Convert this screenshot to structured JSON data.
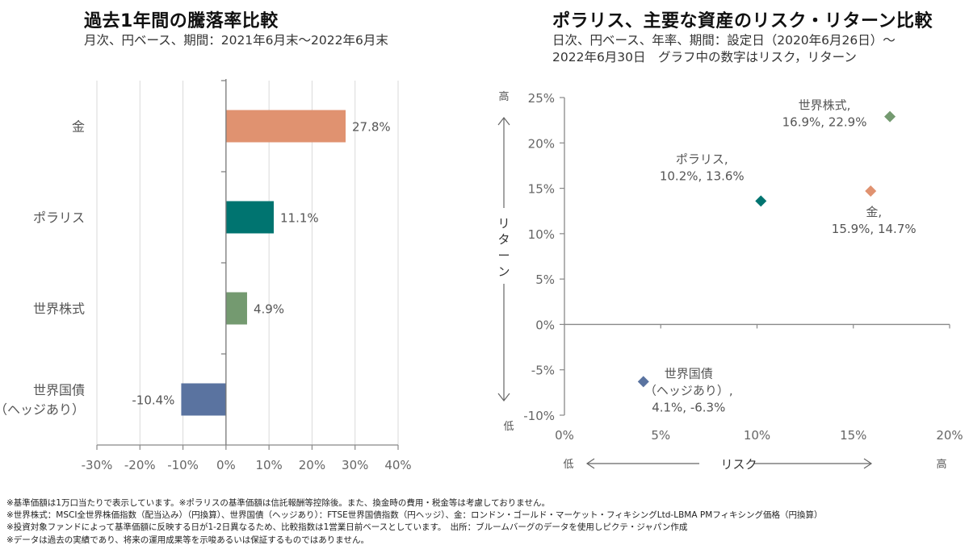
{
  "chart_data": [
    {
      "type": "bar",
      "orientation": "horizontal",
      "title": "過去1年間の騰落率比較",
      "subtitle": "月次、円ベース、期間：2021年6月末～2022年6月末",
      "categories": [
        "金",
        "ポラリス",
        "世界株式",
        "世界国債\n（ヘッジあり）"
      ],
      "category_lines": [
        [
          "金"
        ],
        [
          "ポラリス"
        ],
        [
          "世界株式"
        ],
        [
          "世界国債",
          "（ヘッジあり）"
        ]
      ],
      "values": [
        27.8,
        11.1,
        4.9,
        -10.4
      ],
      "data_labels": [
        "27.8%",
        "11.1%",
        "4.9%",
        "-10.4%"
      ],
      "colors": [
        "#e09270",
        "#007470",
        "#749a70",
        "#5a73a0"
      ],
      "xlim": [
        -30,
        40
      ],
      "xticks": [
        -30,
        -20,
        -10,
        0,
        10,
        20,
        30,
        40
      ],
      "xtick_labels": [
        "-30%",
        "-20%",
        "-10%",
        "0%",
        "10%",
        "20%",
        "30%",
        "40%"
      ],
      "grid": true,
      "xlabel": "",
      "ylabel": ""
    },
    {
      "type": "scatter",
      "title": "ポラリス、主要な資産のリスク・リターン比較",
      "subtitle_lines": [
        "日次、円ベース、年率、期間：設定日（2020年6月26日）～",
        "2022年6月30日　グラフ中の数字はリスク，リターン"
      ],
      "points": [
        {
          "name": "世界株式",
          "x": 16.9,
          "y": 22.9,
          "color": "#749a70",
          "label_lines": [
            "世界株式,",
            "16.9%, 22.9%"
          ]
        },
        {
          "name": "ポラリス",
          "x": 10.2,
          "y": 13.6,
          "color": "#007470",
          "label_lines": [
            "ポラリス,",
            "10.2%, 13.6%"
          ]
        },
        {
          "name": "金",
          "x": 15.9,
          "y": 14.7,
          "color": "#e09270",
          "label_lines": [
            "金,",
            "15.9%, 14.7%"
          ]
        },
        {
          "name": "世界国債（ヘッジあり）",
          "x": 4.1,
          "y": -6.3,
          "color": "#5a73a0",
          "label_lines": [
            "世界国債",
            "（ヘッジあり）,",
            "4.1%, -6.3%"
          ]
        }
      ],
      "xlim": [
        0,
        20
      ],
      "ylim": [
        -10,
        25
      ],
      "xticks": [
        0,
        5,
        10,
        15,
        20
      ],
      "xtick_labels": [
        "0%",
        "5%",
        "10%",
        "15%",
        "20%"
      ],
      "yticks": [
        25,
        20,
        15,
        10,
        5,
        0,
        -5,
        -10
      ],
      "ytick_labels": [
        "25%",
        "20%",
        "15%",
        "10%",
        "5%",
        "0%",
        "-5%",
        "-10%"
      ],
      "xlabel": "リスク",
      "ylabel": "リターン",
      "x_low": "低",
      "x_high": "高",
      "y_low": "低",
      "y_high": "高",
      "grid": false
    }
  ],
  "footnotes": [
    "※基準価額は1万口当たりで表示しています。※ポラリスの基準価額は信託報酬等控除後。また、換金時の費用・税金等は考慮しておりません。",
    "※世界株式：MSCI全世界株価指数（配当込み）（円換算）、世界国債（ヘッジあり）：FTSE世界国債指数（円ヘッジ）、金：ロンドン・ゴールド・マーケット・フィキシングLtd-LBMA PMフィキシング価格（円換算）",
    "※投資対象ファンドによって基準価額に反映する日が1-2日異なるため、比較指数は1営業日前ベースとしています。　出所：ブルームバーグのデータを使用しピクテ・ジャパン作成",
    "※データは過去の実績であり、将来の運用成果等を示唆あるいは保証するものではありません。"
  ]
}
